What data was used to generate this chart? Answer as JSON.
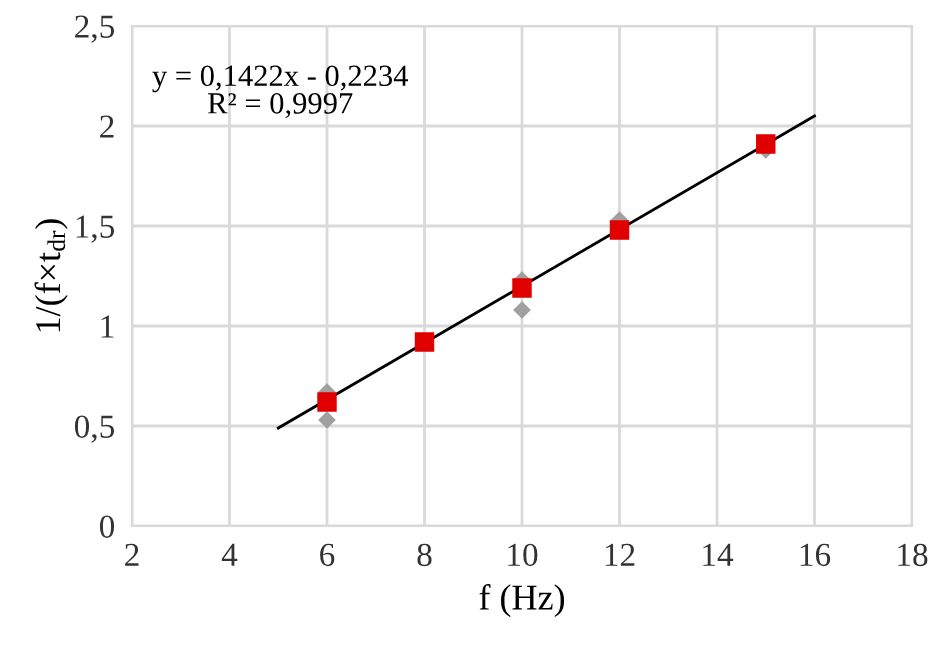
{
  "chart_data": {
    "type": "scatter",
    "xlabel": "f (Hz)",
    "ylabel": "1/(f×t$_{dr}$)",
    "xlim": [
      2,
      18
    ],
    "xticks": [
      2,
      4,
      6,
      8,
      10,
      12,
      14,
      16,
      18
    ],
    "ylim": [
      0,
      2.5
    ],
    "yticks": [
      0,
      {
        "value": 0.5,
        "label": "0,5"
      },
      1,
      {
        "value": 1.5,
        "label": "1,5"
      },
      2,
      {
        "value": 2.5,
        "label": "2,5"
      }
    ],
    "grid": true,
    "legend": false,
    "annotations": [
      "y = 0,1422x - 0,2234",
      "R² = 0,9997"
    ],
    "series": [
      {
        "marker": "diamond",
        "color": "#a0a0a0",
        "x": [
          6,
          6,
          10,
          10,
          12,
          15
        ],
        "values": [
          0.67,
          0.53,
          1.23,
          1.08,
          1.53,
          1.88
        ]
      },
      {
        "type": "line",
        "marker": "none",
        "color": "#000000",
        "x": [
          5,
          16
        ],
        "values": [
          0.49,
          2.05
        ]
      },
      {
        "marker": "square",
        "color": "#e00000",
        "x": [
          6,
          8,
          10,
          12,
          15
        ],
        "values": [
          0.62,
          0.92,
          1.19,
          1.48,
          1.91
        ]
      }
    ]
  }
}
